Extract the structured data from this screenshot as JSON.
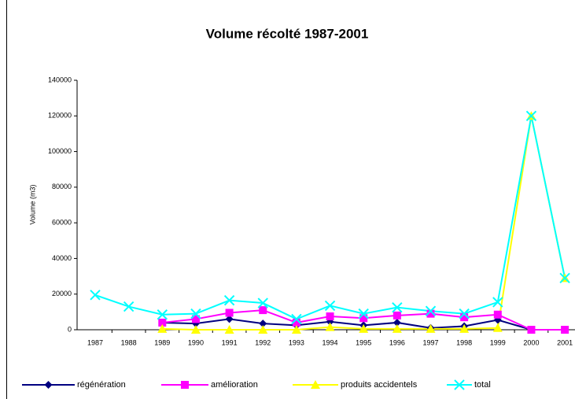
{
  "chart_data": {
    "type": "line",
    "title": "Volume récolté 1987-2001",
    "y_label": "Volume (m3)",
    "categories": [
      "1987",
      "1988",
      "1989",
      "1990",
      "1991",
      "1992",
      "1993",
      "1994",
      "1995",
      "1996",
      "1997",
      "1998",
      "1999",
      "2000",
      "2001"
    ],
    "ylim": [
      0,
      140000
    ],
    "yticks": [
      0,
      20000,
      40000,
      60000,
      80000,
      100000,
      120000,
      140000
    ],
    "legend": "bottom",
    "series": [
      {
        "name": "régénération",
        "color": "#000080",
        "marker": "diamond",
        "values": [
          null,
          null,
          4000,
          3500,
          6000,
          3500,
          2500,
          4500,
          2500,
          4000,
          1000,
          2000,
          5500,
          0,
          0
        ]
      },
      {
        "name": "amélioration",
        "color": "#ff00ff",
        "marker": "square",
        "values": [
          null,
          null,
          4000,
          6000,
          9500,
          11000,
          4000,
          7500,
          6500,
          8000,
          9000,
          7000,
          8500,
          0,
          0
        ]
      },
      {
        "name": "produits accidentels",
        "color": "#ffff00",
        "marker": "triangle",
        "values": [
          null,
          null,
          500,
          0,
          0,
          0,
          0,
          1500,
          500,
          500,
          500,
          500,
          1000,
          120000,
          29000
        ]
      },
      {
        "name": "total",
        "color": "#00ffff",
        "marker": "x",
        "values": [
          19500,
          13000,
          8500,
          9000,
          16500,
          15000,
          6000,
          13500,
          9000,
          12500,
          10500,
          9000,
          15500,
          120000,
          29000
        ]
      }
    ]
  }
}
